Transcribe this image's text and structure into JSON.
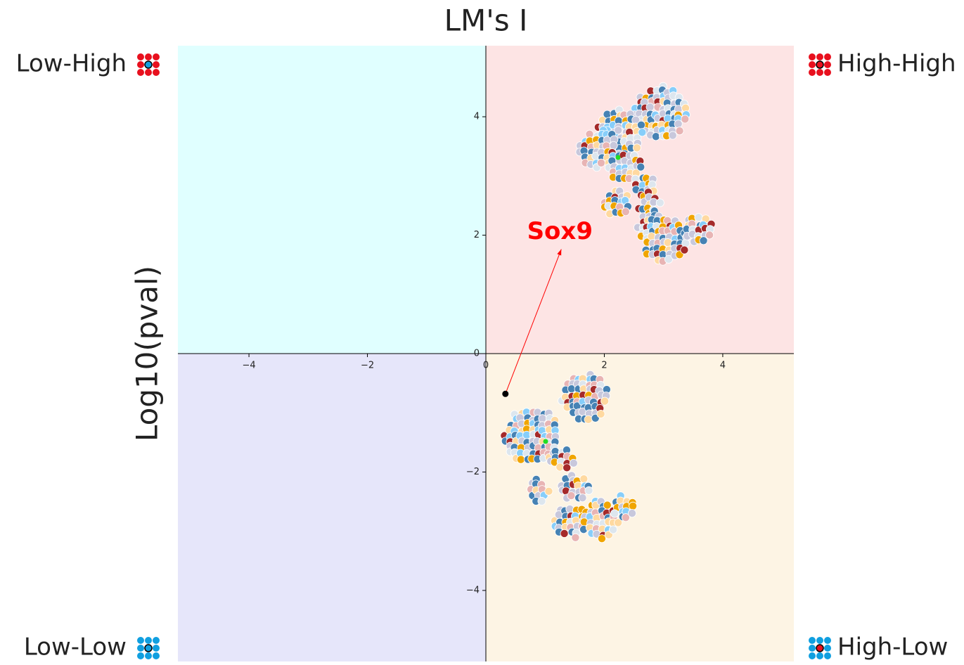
{
  "chart_data": {
    "type": "scatter",
    "title": "LM's I",
    "y_label": "Log10(pval)",
    "x": [
      0.33
    ],
    "y": [
      -0.68
    ],
    "color": "#000000",
    "xlim": [
      -5.2,
      5.2
    ],
    "ylim": [
      -5.2,
      5.2
    ],
    "xticks": [
      {
        "value": -4,
        "label": "−4"
      },
      {
        "value": -2,
        "label": "−2"
      },
      0,
      2,
      4
    ],
    "yticks": [
      {
        "value": -4,
        "label": "−4"
      },
      {
        "value": -2,
        "label": "−2"
      },
      0,
      2,
      4
    ],
    "annotation": {
      "text": "Sox9",
      "xy": [
        0.33,
        -0.68
      ],
      "xytext": [
        1.25,
        2.0
      ],
      "color": "#ff0000"
    },
    "quadrants": [
      {
        "name": "Low-High",
        "corner": "top-left",
        "color": "#e0ffff"
      },
      {
        "name": "High-High",
        "corner": "top-right",
        "color": "#fde4e4"
      },
      {
        "name": "Low-Low",
        "corner": "bottom-left",
        "color": "#e6e6fa"
      },
      {
        "name": "High-Low",
        "corner": "bottom-right",
        "color": "#fdf4e4"
      }
    ]
  }
}
